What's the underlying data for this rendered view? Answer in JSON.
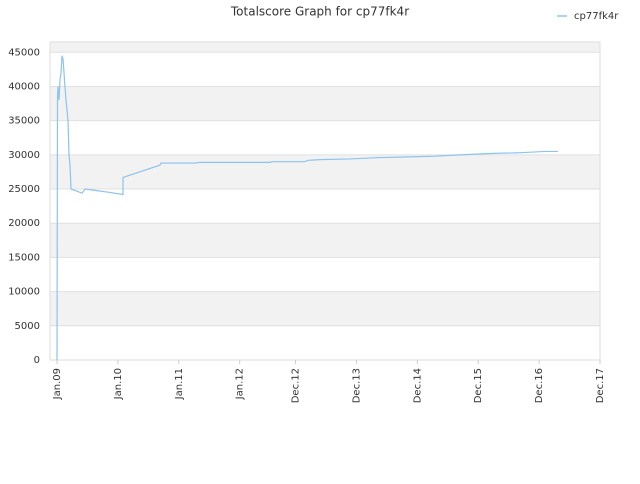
{
  "chart_data": {
    "type": "line",
    "title": "Totalscore Graph for cp77fk4r",
    "x": [
      2009.0,
      2009.008,
      2009.016,
      2009.033,
      2009.049,
      2009.066,
      2009.082,
      2009.099,
      2009.115,
      2009.131,
      2009.148,
      2009.181,
      2009.197,
      2009.213,
      2009.23,
      2009.296,
      2009.411,
      2009.46,
      2009.624,
      2009.87,
      2010.084,
      2010.084,
      2010.691,
      2010.708,
      2011.266,
      2011.348,
      2012.498,
      2012.53,
      2013.072,
      2013.122,
      2013.319,
      2013.811,
      2014.304,
      2014.764,
      2015.207,
      2015.617,
      2016.11,
      2016.58,
      2017.013,
      2017.227
    ],
    "series": [
      {
        "name": "cp77fk4r",
        "color": "#8cc3ef",
        "values": [
          0,
          38000,
          40000,
          38000,
          41000,
          42000,
          44500,
          44000,
          42000,
          40000,
          38000,
          35000,
          30000,
          28500,
          25000,
          24800,
          24400,
          25000,
          24800,
          24500,
          24200,
          26700,
          28500,
          28800,
          28800,
          28900,
          28900,
          29000,
          29000,
          29200,
          29300,
          29400,
          29600,
          29700,
          29800,
          30000,
          30200,
          30300,
          30500,
          30500
        ]
      }
    ],
    "xlim": [
      2008.885,
      2017.917
    ],
    "xticks": [
      {
        "value": 2009.0,
        "label": "Jan.09"
      },
      {
        "value": 2010.0,
        "label": "Jan.10"
      },
      {
        "value": 2011.0,
        "label": "Jan.11"
      },
      {
        "value": 2012.0,
        "label": "Jan.12"
      },
      {
        "value": 2012.917,
        "label": "Dec.12"
      },
      {
        "value": 2013.917,
        "label": "Dec.13"
      },
      {
        "value": 2014.917,
        "label": "Dec.14"
      },
      {
        "value": 2015.917,
        "label": "Dec.15"
      },
      {
        "value": 2016.917,
        "label": "Dec.16"
      },
      {
        "value": 2017.917,
        "label": "Dec.17"
      }
    ],
    "ylim": [
      0,
      46500
    ],
    "yticks": [
      0,
      5000,
      10000,
      15000,
      20000,
      25000,
      30000,
      35000,
      40000,
      45000
    ],
    "grid": true,
    "band_color": "#f2f2f2",
    "legend": "top-right"
  }
}
